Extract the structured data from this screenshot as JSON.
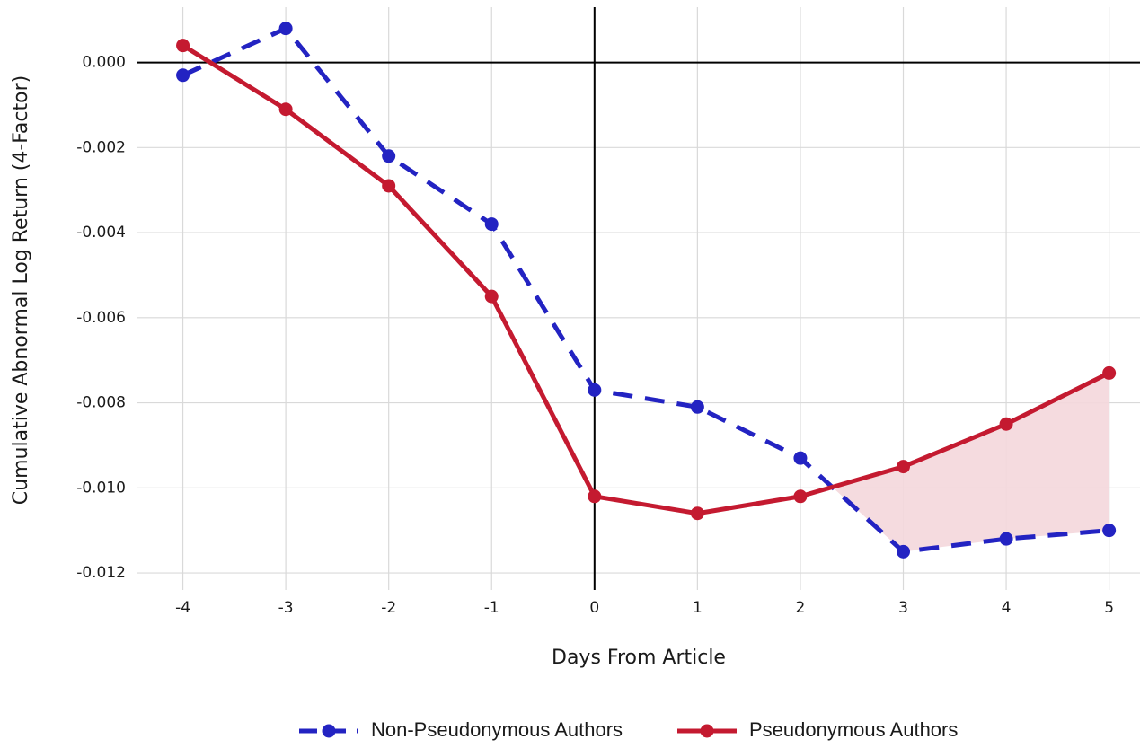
{
  "chart_data": {
    "type": "line",
    "xlabel": "Days From Article",
    "ylabel": "Cumulative Abnormal Log Return (4-Factor)",
    "x": [
      -4,
      -3,
      -2,
      -1,
      0,
      1,
      2,
      3,
      4,
      5
    ],
    "x_tick_labels": [
      "-4",
      "-3",
      "-2",
      "-1",
      "0",
      "1",
      "2",
      "3",
      "4",
      "5"
    ],
    "y_tick_labels": [
      "0.000",
      "-0.002",
      "-0.004",
      "-0.006",
      "-0.008",
      "-0.010",
      "-0.012"
    ],
    "y_ticks": [
      0,
      -0.002,
      -0.004,
      -0.006,
      -0.008,
      -0.01,
      -0.012
    ],
    "xlim": [
      -4.45,
      5.3
    ],
    "ylim": [
      -0.0124,
      0.0013
    ],
    "grid": true,
    "reference_lines": {
      "x": 0,
      "y": 0
    },
    "legend_position": "bottom",
    "shaded_region": {
      "between_series": [
        "Pseudonymous Authors",
        "Non-Pseudonymous Authors"
      ],
      "from_x_crossing": true,
      "color": "#f4d7dc"
    },
    "series": [
      {
        "name": "Non-Pseudonymous Authors",
        "style": "dashed",
        "color": "#2323c2",
        "values": [
          -0.0003,
          0.0008,
          -0.0022,
          -0.0038,
          -0.0077,
          -0.0081,
          -0.0093,
          -0.0115,
          -0.0112,
          -0.011
        ]
      },
      {
        "name": "Pseudonymous Authors",
        "style": "solid",
        "color": "#c41a30",
        "values": [
          0.0004,
          -0.0011,
          -0.0029,
          -0.0055,
          -0.0102,
          -0.0106,
          -0.0102,
          -0.0095,
          -0.0085,
          -0.0073
        ]
      }
    ]
  }
}
